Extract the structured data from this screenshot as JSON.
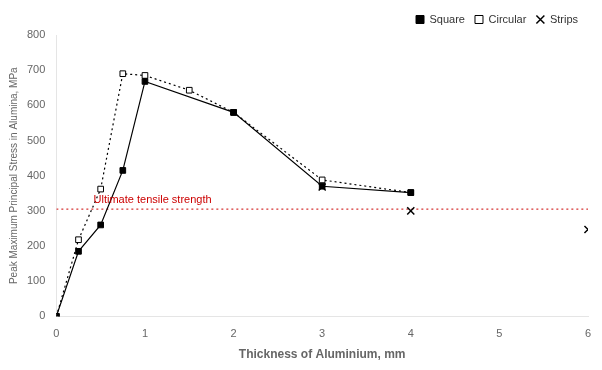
{
  "chart_data": {
    "type": "line",
    "xlabel": "Thickness of Aluminium, mm",
    "ylabel": "Peak Maximum Principal Stress in Alumina, MPa",
    "xlim": [
      0,
      6
    ],
    "ylim": [
      0,
      800
    ],
    "xticks": [
      0,
      1,
      2,
      3,
      4,
      5,
      6
    ],
    "yticks": [
      0,
      100,
      200,
      300,
      400,
      500,
      600,
      700,
      800
    ],
    "grid": false,
    "legend": "upper right",
    "series": [
      {
        "name": "Square",
        "x": [
          0.0,
          0.25,
          0.5,
          0.75,
          1.0,
          2.0,
          3.0,
          4.0
        ],
        "values": [
          0,
          185,
          260,
          415,
          668,
          580,
          370,
          352
        ],
        "color": "black",
        "marker": "square",
        "line_style": "solid"
      },
      {
        "name": "Circular",
        "x": [
          0.0,
          0.25,
          0.5,
          0.75,
          1.0,
          1.5,
          2.0,
          3.0,
          4.0
        ],
        "values": [
          0,
          218,
          362,
          690,
          685,
          643,
          580,
          388,
          352
        ],
        "color": "black",
        "marker": "open_square",
        "line_style": "dotted"
      },
      {
        "name": "Strips",
        "x": [
          3.0,
          4.0,
          6.0
        ],
        "values": [
          368,
          300,
          247
        ],
        "color": "black",
        "marker": "x",
        "line_style": "none"
      }
    ],
    "hlines": [
      {
        "y": 305,
        "color": "#cc0000",
        "line_style": "dotted"
      }
    ],
    "annotations": [
      {
        "text": "Ultimate tensile strength",
        "x": 0.42,
        "y": 315,
        "color": "#cc0000"
      }
    ]
  }
}
